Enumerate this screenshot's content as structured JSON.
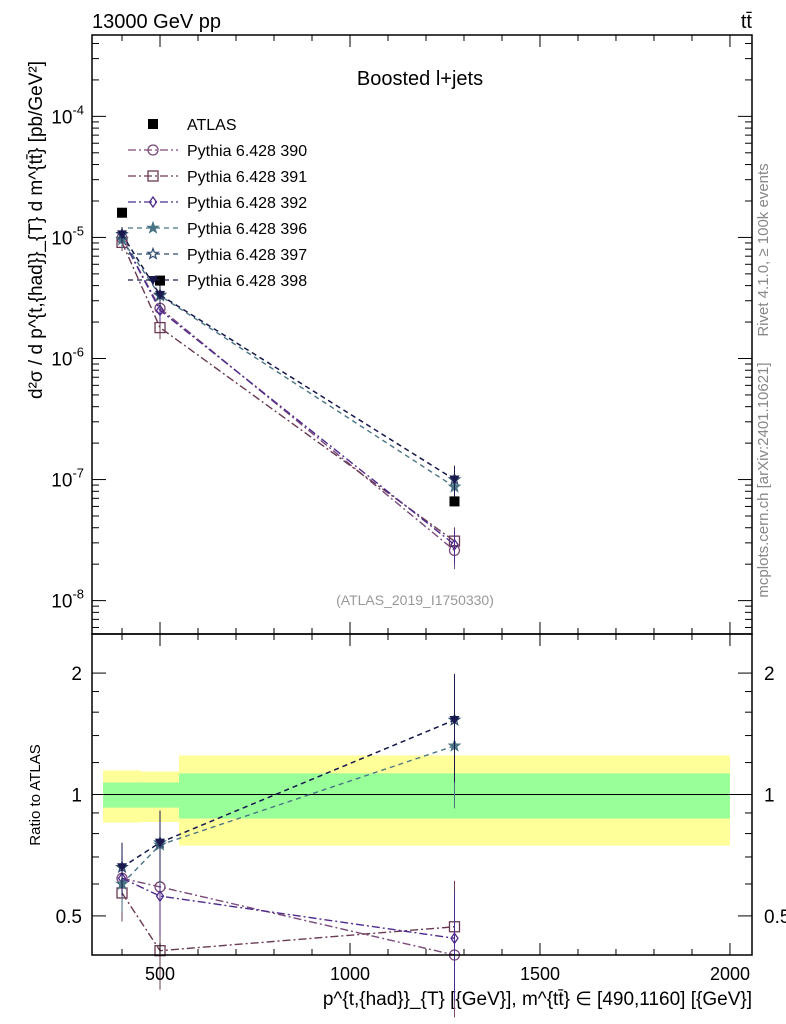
{
  "header": {
    "left": "13000 GeV pp",
    "right": "tt̄"
  },
  "side": {
    "rivet": "Rivet 4.1.0, ≥ 100k events",
    "mcplots": "mcplots.cern.ch [arXiv:2401.10621]"
  },
  "chart_data": {
    "type": "line",
    "title": "Boosted l+jets",
    "watermark": "(ATLAS_2019_I1750330)",
    "ylabel": "d²σ / d p^{t,{had}}_{T} d m^{tt̄} [pb/GeV²]",
    "ratio_ylabel": "Ratio to ATLAS",
    "xlabel": "p^{t,{had}}_{T} [{GeV}], m^{tt̄} ∈ [490,1160] [{GeV}]",
    "xlim": [
      321,
      2058
    ],
    "ylim": [
      5.3e-09,
      0.00047
    ],
    "ratio_ylim": [
      0.4,
      2.5
    ],
    "xticks": [
      500,
      1000,
      1500,
      2000
    ],
    "yticks": [
      {
        "v": 0.0001,
        "l": "10",
        "e": "-4"
      },
      {
        "v": 1e-05,
        "l": "10",
        "e": "-5"
      },
      {
        "v": 1e-06,
        "l": "10",
        "e": "-6"
      },
      {
        "v": 1e-07,
        "l": "10",
        "e": "-7"
      },
      {
        "v": 1e-08,
        "l": "10",
        "e": "-8"
      }
    ],
    "ratio_yticks": [
      0.5,
      1,
      2
    ],
    "x": [
      400,
      500,
      1275
    ],
    "data": {
      "name": "ATLAS",
      "values": [
        1.6e-05,
        4.4e-06,
        6.6e-08
      ]
    },
    "bands": [
      {
        "x0": 350,
        "x1": 450,
        "g": [
          0.928,
          1.071
        ],
        "y": [
          0.852,
          1.147
        ]
      },
      {
        "x0": 450,
        "x1": 550,
        "g": [
          0.928,
          1.071
        ],
        "y": [
          0.855,
          1.14
        ]
      },
      {
        "x0": 550,
        "x1": 2000,
        "g": [
          0.872,
          1.128
        ],
        "y": [
          0.747,
          1.25
        ]
      }
    ],
    "series": [
      {
        "name": "Pythia 6.428 390",
        "color": "#7a4a7a",
        "marker": "circle",
        "dash": "8,3,2,3",
        "values": [
          9.9e-06,
          2.6e-06,
          2.6e-08
        ],
        "ratio": [
          0.62,
          0.59,
          0.4
        ]
      },
      {
        "name": "Pythia 6.428 391",
        "color": "#6a3a55",
        "marker": "square",
        "dash": "8,3,2,3",
        "values": [
          9.1e-06,
          1.8e-06,
          3.1e-08
        ],
        "ratio": [
          0.57,
          0.41,
          0.47
        ]
      },
      {
        "name": "Pythia 6.428 392",
        "color": "#4e2a8e",
        "marker": "diamond",
        "dash": "8,3,2,3",
        "values": [
          9.9e-06,
          2.5e-06,
          2.9e-08
        ],
        "ratio": [
          0.62,
          0.56,
          0.44
        ]
      },
      {
        "name": "Pythia 6.428 396",
        "color": "#4a7585",
        "marker": "star",
        "dash": "5,4",
        "values": [
          9.6e-06,
          3.3e-06,
          8.7e-08
        ],
        "ratio": [
          0.6,
          0.75,
          1.32
        ]
      },
      {
        "name": "Pythia 6.428 397",
        "color": "#2e4a6e",
        "marker": "star-open",
        "dash": "5,4",
        "values": [
          1.06e-05,
          3.35e-06,
          1e-07
        ],
        "ratio": [
          0.66,
          0.76,
          1.53
        ]
      },
      {
        "name": "Pythia 6.428 398",
        "color": "#1a1a4e",
        "marker": "triangle",
        "dash": "5,4",
        "values": [
          1.06e-05,
          3.35e-06,
          1e-07
        ],
        "ratio": [
          0.66,
          0.76,
          1.53
        ]
      }
    ]
  }
}
